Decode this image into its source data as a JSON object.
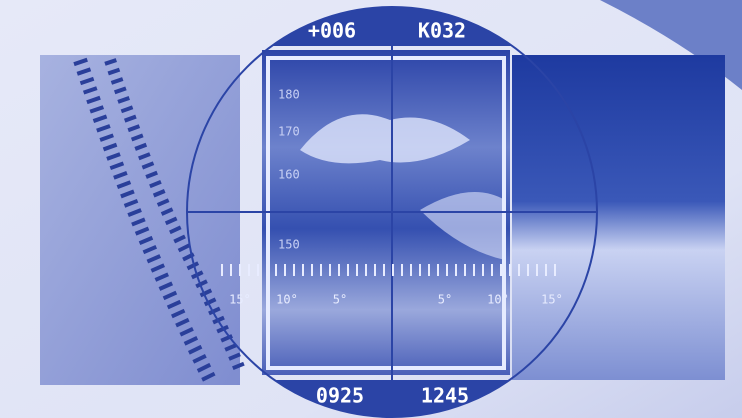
{
  "hud": {
    "top_left": "+006",
    "top_right": "K032",
    "bottom_left": "0925",
    "bottom_right": "1245",
    "horizontal_scale": [
      "15°",
      "10°",
      "5°",
      "5°",
      "10°",
      "15°"
    ],
    "vertical_scale": [
      "180",
      "170",
      "160",
      "150"
    ]
  }
}
